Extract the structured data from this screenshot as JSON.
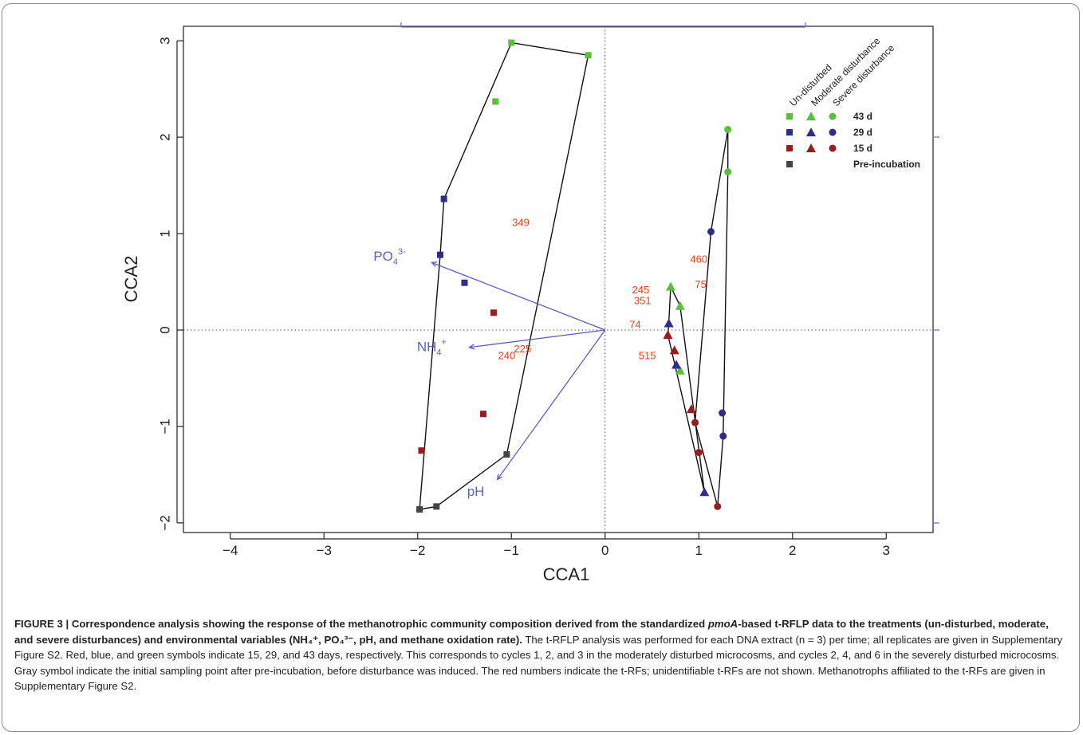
{
  "chart_data": {
    "type": "scatter",
    "xlabel": "CCA1",
    "ylabel": "CCA2",
    "xlim": [
      -4.5,
      3.5
    ],
    "ylim": [
      -2.1,
      3.15
    ],
    "x_ticks": [
      -4,
      -3,
      -2,
      -1,
      0,
      1,
      2,
      3
    ],
    "y_ticks": [
      -2,
      -1,
      0,
      1,
      2,
      3
    ],
    "x_tick_labels": [
      "−4",
      "−3",
      "−2",
      "−1",
      "0",
      "1",
      "2",
      "3"
    ],
    "y_tick_labels": [
      "−2",
      "−1",
      "0",
      "1",
      "2",
      "3"
    ],
    "reference_lines": {
      "x": 0,
      "y": 0,
      "style": "dotted"
    },
    "colors": {
      "green": "#5cbf3c",
      "blue": "#2e2e8a",
      "red": "#9a1c1c",
      "gray": "#444444",
      "vector": "#5a5fc4",
      "trf": "#e8431a",
      "hull": "#111111"
    },
    "series": [
      {
        "name": "Un-disturbed 43 d",
        "treatment": "undisturbed",
        "shape": "square",
        "color": "green",
        "points": [
          [
            -1.0,
            2.98
          ],
          [
            -0.18,
            2.85
          ],
          [
            -1.17,
            2.37
          ]
        ]
      },
      {
        "name": "Un-disturbed 29 d",
        "treatment": "undisturbed",
        "shape": "square",
        "color": "blue",
        "points": [
          [
            -1.72,
            1.36
          ],
          [
            -1.76,
            0.78
          ],
          [
            -1.5,
            0.49
          ]
        ]
      },
      {
        "name": "Un-disturbed 15 d",
        "treatment": "undisturbed",
        "shape": "square",
        "color": "red",
        "points": [
          [
            -1.19,
            0.18
          ],
          [
            -1.3,
            -0.87
          ],
          [
            -1.96,
            -1.25
          ]
        ]
      },
      {
        "name": "Pre-incubation",
        "treatment": "pre-incubation",
        "shape": "square",
        "color": "gray",
        "points": [
          [
            -1.98,
            -1.86
          ],
          [
            -1.8,
            -1.83
          ],
          [
            -1.05,
            -1.29
          ]
        ]
      },
      {
        "name": "Moderate disturbance 43 d",
        "treatment": "moderate",
        "shape": "triangle",
        "color": "green",
        "points": [
          [
            0.7,
            0.45
          ],
          [
            0.8,
            0.25
          ],
          [
            0.8,
            -0.42
          ]
        ]
      },
      {
        "name": "Moderate disturbance 29 d",
        "treatment": "moderate",
        "shape": "triangle",
        "color": "blue",
        "points": [
          [
            0.68,
            0.07
          ],
          [
            0.76,
            -0.36
          ],
          [
            1.06,
            -1.68
          ]
        ]
      },
      {
        "name": "Moderate disturbance 15 d",
        "treatment": "moderate",
        "shape": "triangle",
        "color": "red",
        "points": [
          [
            0.67,
            -0.05
          ],
          [
            0.74,
            -0.21
          ],
          [
            0.92,
            -0.82
          ]
        ]
      },
      {
        "name": "Severe disturbance 43 d",
        "treatment": "severe",
        "shape": "circle",
        "color": "green",
        "points": [
          [
            1.31,
            2.08
          ],
          [
            1.31,
            1.64
          ]
        ]
      },
      {
        "name": "Severe disturbance 29 d",
        "treatment": "severe",
        "shape": "circle",
        "color": "blue",
        "points": [
          [
            1.13,
            1.02
          ],
          [
            1.25,
            -0.86
          ],
          [
            1.26,
            -1.1
          ]
        ]
      },
      {
        "name": "Severe disturbance 15 d",
        "treatment": "severe",
        "shape": "circle",
        "color": "red",
        "points": [
          [
            0.96,
            -0.96
          ],
          [
            1.0,
            -1.27
          ],
          [
            1.2,
            -1.83
          ]
        ]
      }
    ],
    "hulls": {
      "undisturbed": [
        [
          -1.0,
          2.98
        ],
        [
          -0.18,
          2.85
        ],
        [
          -1.05,
          -1.29
        ],
        [
          -1.8,
          -1.83
        ],
        [
          -1.98,
          -1.86
        ],
        [
          -1.76,
          0.78
        ],
        [
          -1.72,
          1.36
        ]
      ],
      "moderate": [
        [
          0.7,
          0.45
        ],
        [
          0.8,
          0.25
        ],
        [
          1.06,
          -1.68
        ],
        [
          0.67,
          -0.05
        ],
        [
          0.68,
          0.07
        ]
      ],
      "severe": [
        [
          1.31,
          2.08
        ],
        [
          1.31,
          1.64
        ],
        [
          1.26,
          -1.1
        ],
        [
          1.2,
          -1.83
        ],
        [
          0.96,
          -0.96
        ],
        [
          1.13,
          1.02
        ]
      ]
    },
    "vectors": [
      {
        "label": "PO4",
        "sup": "3-",
        "end": [
          -1.85,
          0.7
        ],
        "label_at": [
          -2.3,
          0.72
        ]
      },
      {
        "label": "NH4",
        "sup": "+",
        "end": [
          -1.45,
          -0.18
        ],
        "label_at": [
          -1.85,
          -0.22
        ]
      },
      {
        "label": "pH",
        "sup": "",
        "end": [
          -1.15,
          -1.55
        ],
        "label_at": [
          -1.38,
          -1.72
        ]
      }
    ],
    "trf_labels": [
      {
        "text": "349",
        "at": [
          -0.9,
          1.08
        ]
      },
      {
        "text": "460",
        "at": [
          1.0,
          0.7
        ]
      },
      {
        "text": "75",
        "at": [
          1.02,
          0.44
        ]
      },
      {
        "text": "245",
        "at": [
          0.38,
          0.38
        ]
      },
      {
        "text": "351",
        "at": [
          0.4,
          0.27
        ]
      },
      {
        "text": "74",
        "at": [
          0.32,
          0.02
        ]
      },
      {
        "text": "225",
        "at": [
          -0.88,
          -0.23
        ]
      },
      {
        "text": "240",
        "at": [
          -1.05,
          -0.3
        ]
      },
      {
        "text": "515",
        "at": [
          0.45,
          -0.3
        ]
      }
    ],
    "legend": {
      "placement": "top-right",
      "column_headers": [
        "Un-disturbed",
        "Moderate disturbance",
        "Severe disturbance"
      ],
      "rows": [
        {
          "label": "43 d",
          "color": "green",
          "shapes": [
            "square",
            "triangle",
            "circle"
          ]
        },
        {
          "label": "29 d",
          "color": "blue",
          "shapes": [
            "square",
            "triangle",
            "circle"
          ]
        },
        {
          "label": "15 d",
          "color": "red",
          "shapes": [
            "square",
            "triangle",
            "circle"
          ]
        },
        {
          "label": "Pre-incubation",
          "color": "gray",
          "shapes": [
            "square"
          ]
        }
      ]
    }
  },
  "caption": {
    "lead_prefix": "FIGURE 3 | Correspondence analysis showing the response of the methanotrophic community composition derived from the standardized ",
    "lead_gene": "pmoA",
    "lead_suffix": "-based t-RFLP data to the treatments (un-disturbed, moderate, and severe disturbances) and environmental variables (NH₄⁺, PO₄³⁻, pH, and methane oxidation rate).",
    "body": " The t-RFLP analysis was performed for each DNA extract (n = 3) per time; all replicates are given in Supplementary Figure S2. Red, blue, and green symbols indicate 15, 29, and 43 days, respectively. This corresponds to cycles 1, 2, and 3 in the moderately disturbed microcosms, and cycles 2, 4, and 6 in the severely disturbed microcosms. Gray symbol indicate the initial sampling point after pre-incubation, before disturbance was induced. The red numbers indicate the t-RFs; unidentifiable t-RFs are not shown. Methanotrophs affiliated to the t-RFs are given in Supplementary Figure S2."
  }
}
